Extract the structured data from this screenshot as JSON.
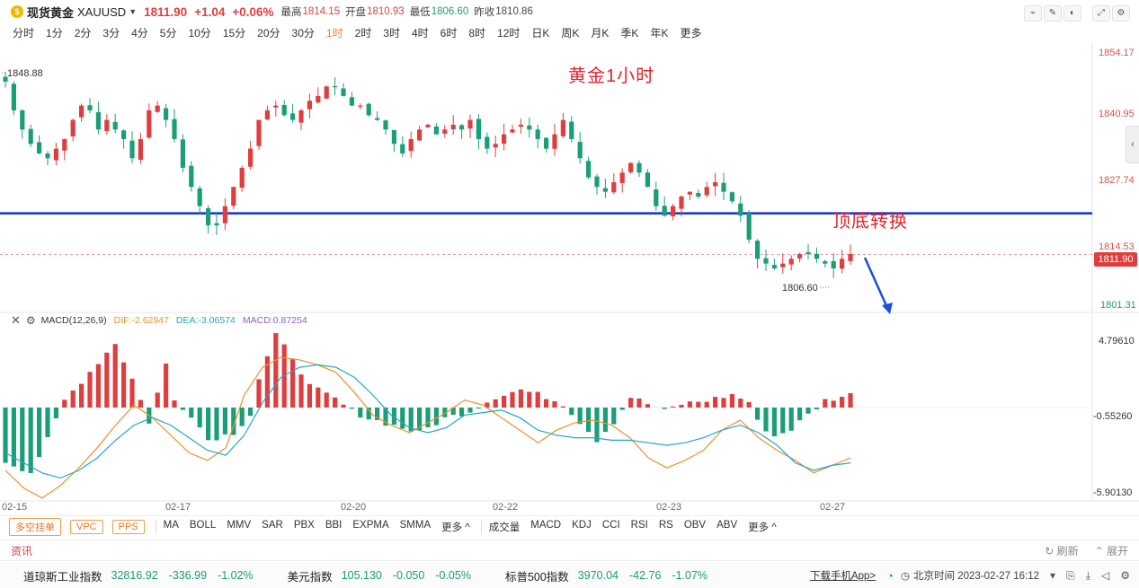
{
  "header": {
    "logo_glyph": "$",
    "symbol_name": "现货黄金",
    "symbol_code": "XAUUSD",
    "price": "1811.90",
    "change": "+1.04",
    "change_pct": "+0.06%",
    "high_label": "最高",
    "high": "1814.15",
    "open_label": "开盘",
    "open": "1810.93",
    "low_label": "最低",
    "low": "1806.60",
    "prev_label": "昨收",
    "prev": "1810.86"
  },
  "toolbar_icons": [
    "line-tool-icon",
    "pen-icon",
    "magnet-icon",
    "fullscreen-icon",
    "settings-icon"
  ],
  "periods": [
    "分时",
    "1分",
    "2分",
    "3分",
    "4分",
    "5分",
    "10分",
    "15分",
    "20分",
    "30分",
    "1时",
    "2时",
    "3时",
    "4时",
    "6时",
    "8时",
    "12时",
    "日K",
    "周K",
    "月K",
    "季K",
    "年K",
    "更多"
  ],
  "active_period": "1时",
  "price_axis": [
    "1854.17",
    "1840.95",
    "1827.74",
    "1814.53",
    "1801.31"
  ],
  "current_price_tag": "1811.90",
  "high_marker": "1848.88",
  "low_marker": "1806.60",
  "annotations": {
    "title": "黄金1小时",
    "switch": "顶底转换"
  },
  "macd": {
    "name": "MACD(12,26,9)",
    "dif": "DIF:-2.62947",
    "dea": "DEA:-3.06574",
    "macd": "MACD:0.87254",
    "axis": [
      "4.79610",
      "-0.55260",
      "-5.90130"
    ]
  },
  "dates": [
    "02-15",
    "02-17",
    "02-20",
    "02-22",
    "02-23",
    "02-27"
  ],
  "order_buttons": [
    "多空挂单",
    "VPC",
    "PPS"
  ],
  "main_indicators": [
    "MA",
    "BOLL",
    "MMV",
    "SAR",
    "PBX",
    "BBI",
    "EXPMA",
    "SMMA",
    "更多 ^"
  ],
  "sub_indicators": [
    "成交量",
    "MACD",
    "KDJ",
    "CCI",
    "RSI",
    "RS",
    "OBV",
    "ABV",
    "更多 ^"
  ],
  "news": {
    "title": "资讯",
    "refresh": "刷新",
    "expand": "展开"
  },
  "ticker": [
    {
      "name": "道琼斯工业指数",
      "value": "32816.92",
      "change": "-336.99",
      "pct": "-1.02%"
    },
    {
      "name": "美元指数",
      "value": "105.130",
      "change": "-0.050",
      "pct": "-0.05%"
    },
    {
      "name": "标普500指数",
      "value": "3970.04",
      "change": "-42.76",
      "pct": "-1.07%"
    }
  ],
  "footer": {
    "download": "下载手机App>",
    "time": "北京时间 2023-02-27 16:12"
  },
  "colors": {
    "up": "#e03e3e",
    "down": "#1a9e77",
    "accent": "#f07b2b",
    "blue_line": "#1230d0"
  },
  "chart_data": {
    "type": "candlestick",
    "title": "黄金1小时",
    "ylim": [
      1801.31,
      1854.17
    ],
    "support_resistance_level": 1820.5,
    "candles_close": [
      1848,
      1842,
      1838,
      1835,
      1833,
      1832,
      1834,
      1836,
      1840,
      1843,
      1842,
      1838,
      1840,
      1838,
      1836,
      1832,
      1836,
      1842,
      1843,
      1840,
      1836,
      1830,
      1826,
      1822,
      1818,
      1818,
      1822,
      1826,
      1830,
      1834,
      1840,
      1842,
      1843,
      1841,
      1840,
      1842,
      1844,
      1845,
      1847,
      1847,
      1845,
      1843,
      1843,
      1841,
      1840,
      1838,
      1835,
      1833,
      1836,
      1838,
      1839,
      1837,
      1838,
      1839,
      1838,
      1840,
      1836,
      1834,
      1835,
      1837,
      1838,
      1839,
      1838,
      1836,
      1834,
      1837,
      1840,
      1836,
      1832,
      1828,
      1826,
      1825,
      1827,
      1829,
      1831,
      1829,
      1826,
      1822,
      1820,
      1822,
      1824,
      1825,
      1824,
      1826,
      1827,
      1825,
      1823,
      1820,
      1815,
      1811,
      1810,
      1809,
      1810,
      1811,
      1812,
      1812,
      1811,
      1810,
      1809,
      1811,
      1812
    ],
    "macd_hist_approx": "columns shown positive (red) and negative (green) over the period",
    "arrow": "projected downward continuation"
  }
}
